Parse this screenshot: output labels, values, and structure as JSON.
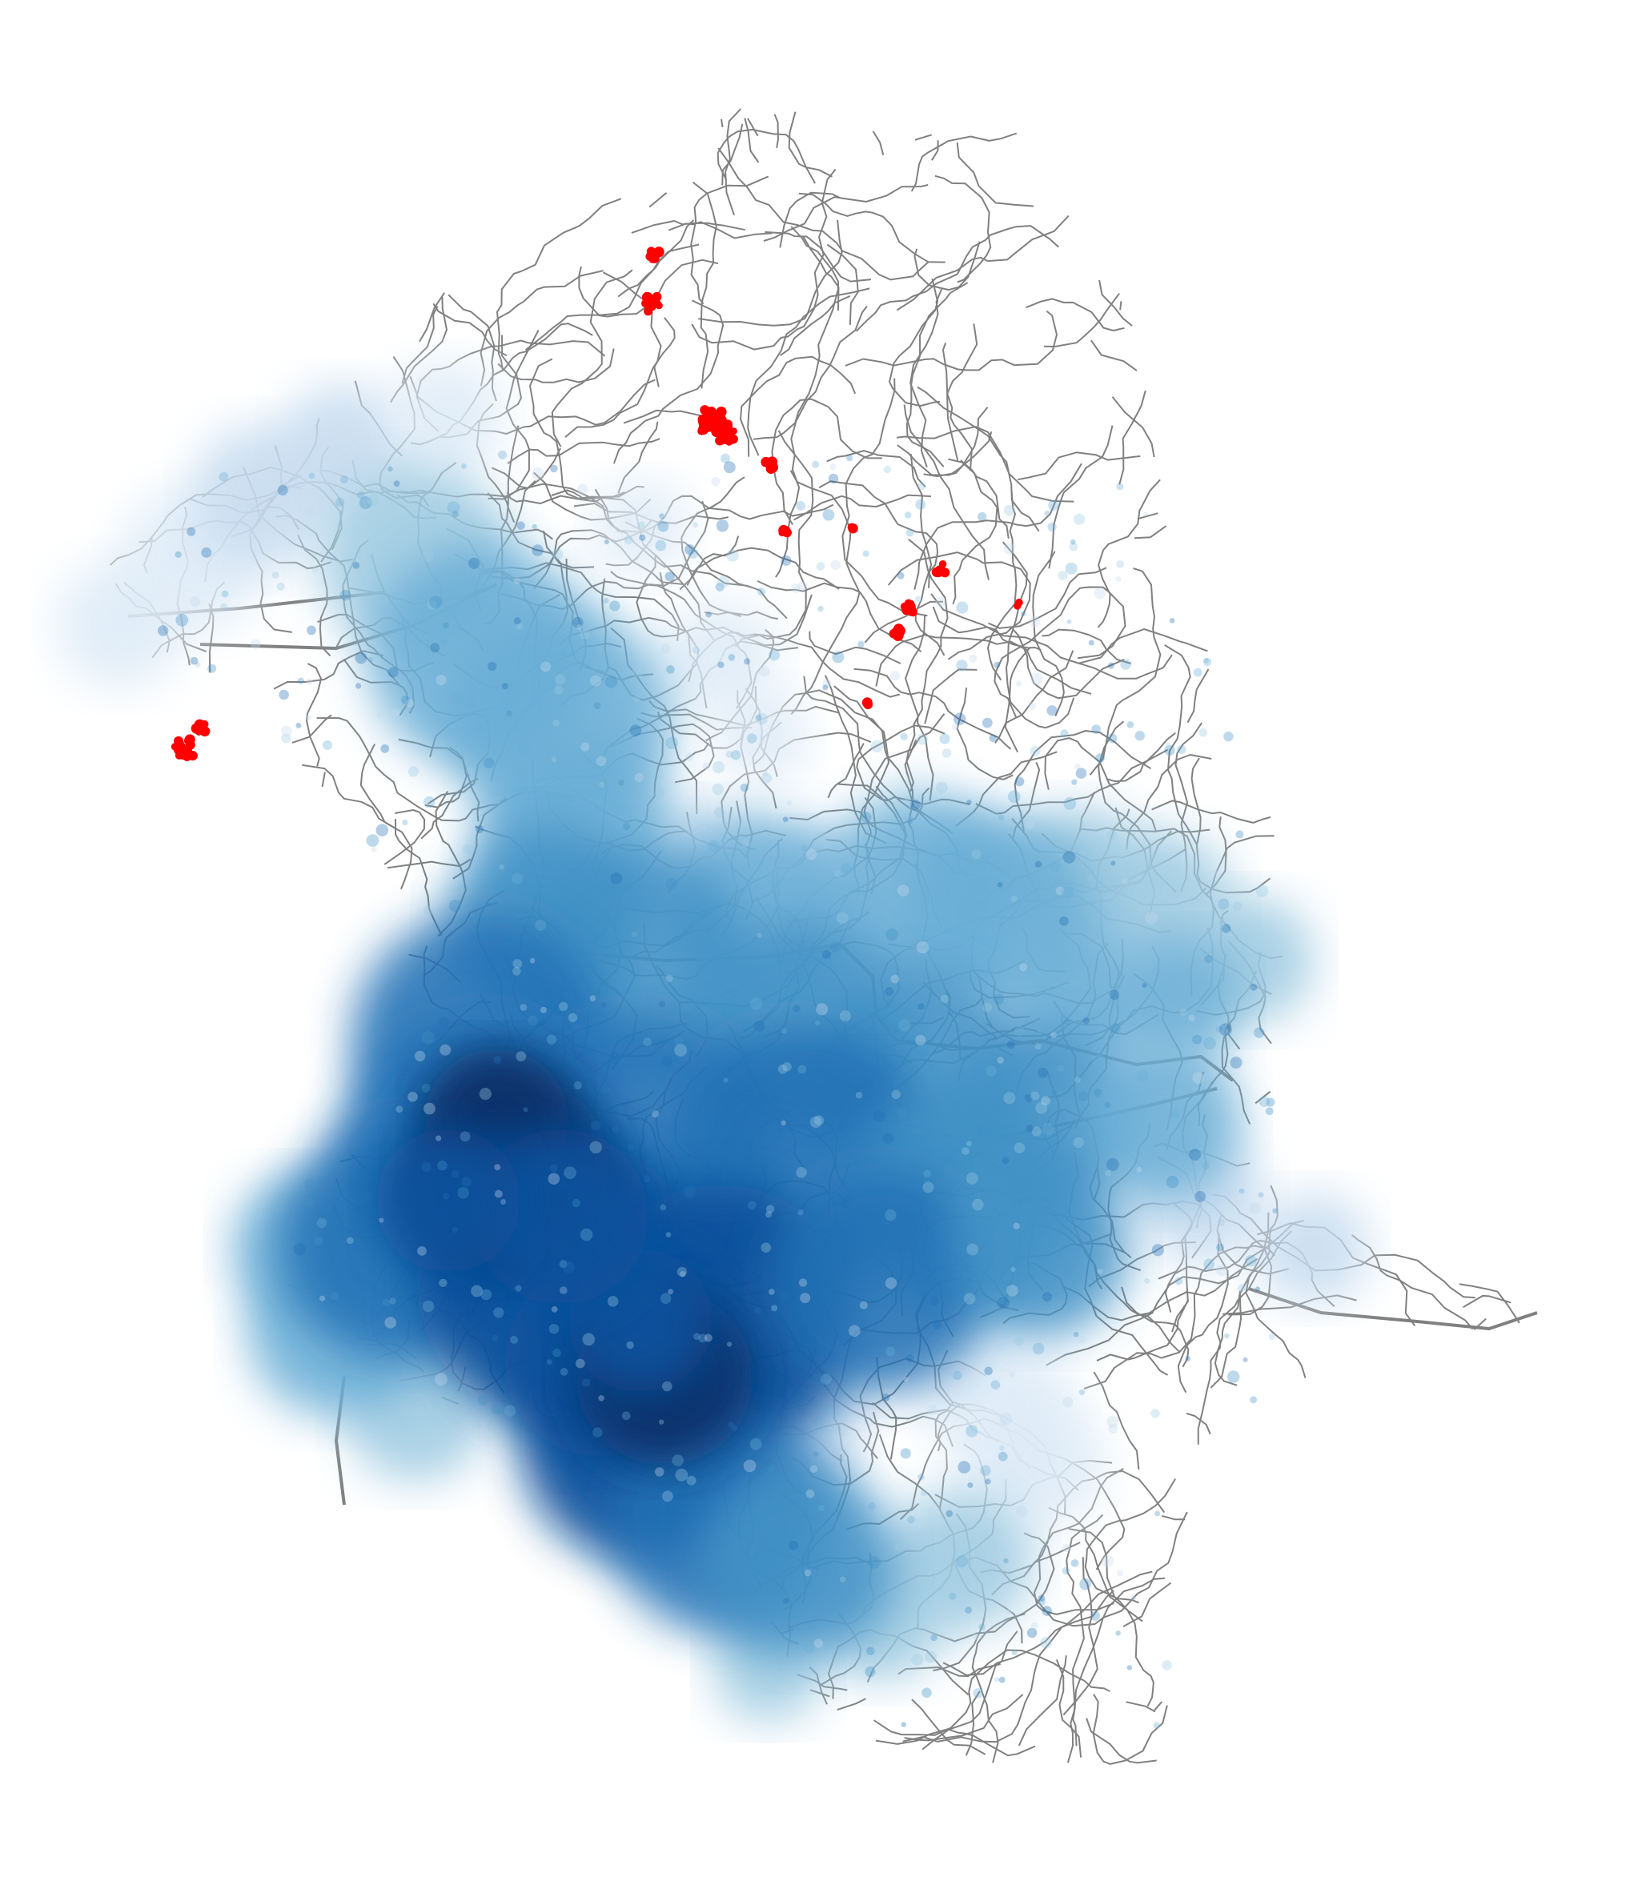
{
  "map": {
    "kind": "road network with density heat overlay",
    "road_color": "#808080",
    "heat_colors": [
      "#deebf7",
      "#c6dbef",
      "#9ecae1",
      "#6baed6",
      "#4292c6",
      "#2171b5",
      "#08519c",
      "#08306b"
    ],
    "highlight_color": "#ff0000",
    "background": "#ffffff"
  }
}
